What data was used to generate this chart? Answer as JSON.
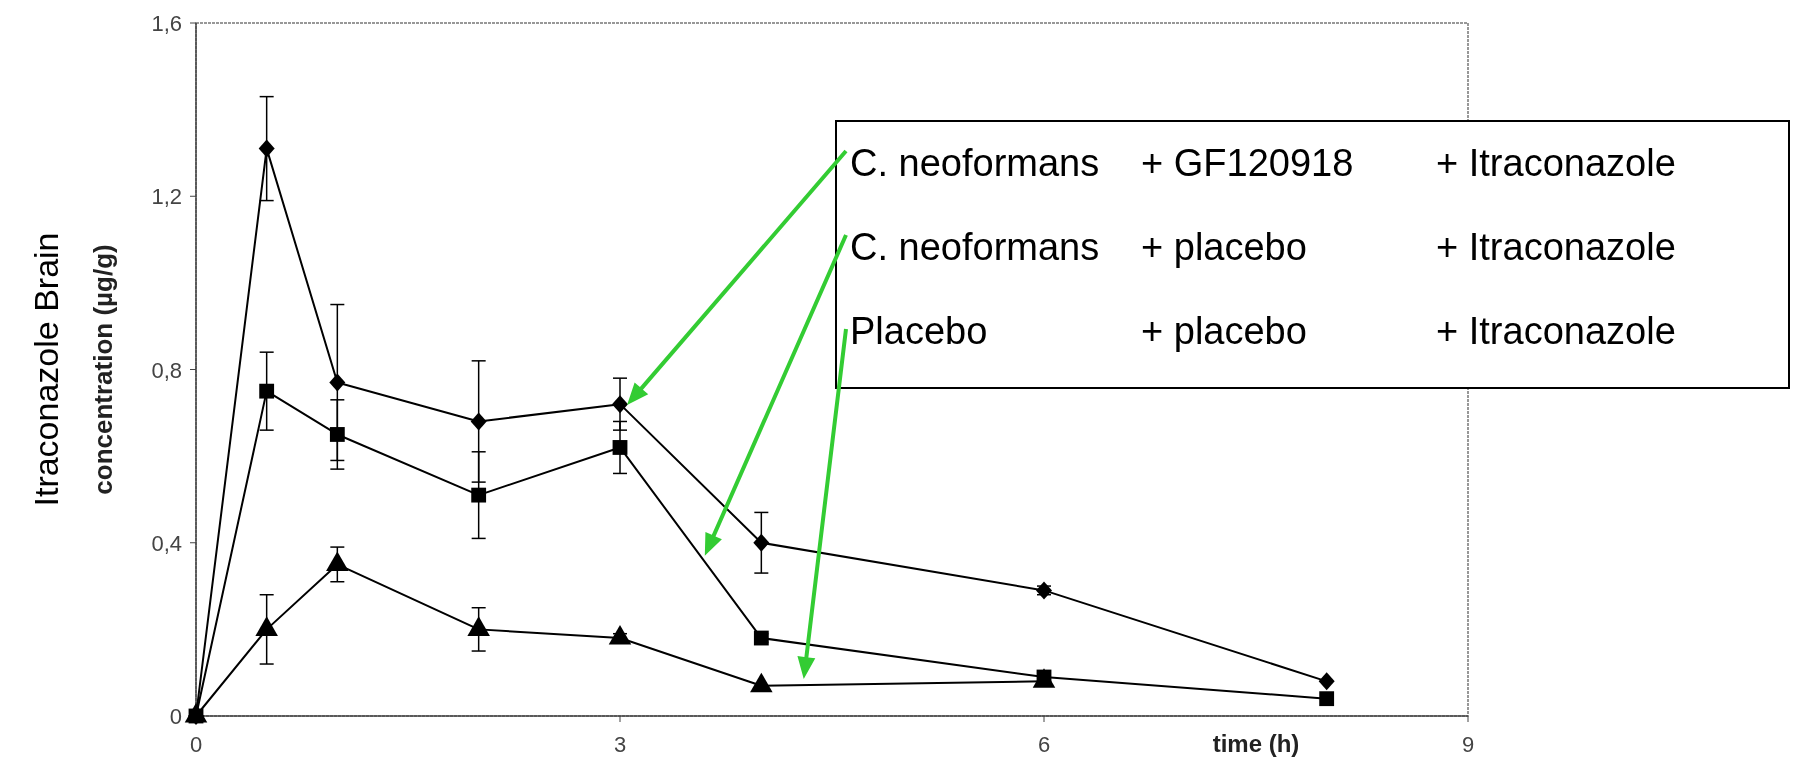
{
  "chart_data": {
    "type": "line",
    "xlabel": "time (h)",
    "ylabel": "Itraconazole Brain concentration (µg/g)",
    "x": [
      0,
      0.5,
      1,
      2,
      3,
      4,
      6,
      8
    ],
    "xlim": [
      0,
      9
    ],
    "xticks": [
      0,
      3,
      6,
      9
    ],
    "ylim": [
      0,
      1.6
    ],
    "yticks": [
      0,
      {
        "value": 0.4,
        "label": "0,4"
      },
      {
        "value": 0.8,
        "label": "0,8"
      },
      {
        "value": 1.2,
        "label": "1,2"
      },
      {
        "value": 1.6,
        "label": "1,6"
      }
    ],
    "grid": false,
    "line_style": "solid",
    "series": [
      {
        "name": "C. neoformans + GF120918 + Itraconazole",
        "color": "#000000",
        "marker": "diamond",
        "values": [
          0,
          1.31,
          0.77,
          0.68,
          0.72,
          0.4,
          0.29,
          0.08
        ],
        "errors": [
          null,
          0.12,
          0.18,
          0.14,
          0.06,
          0.07,
          0.01,
          null
        ]
      },
      {
        "name": "C. neoformans + placebo + Itraconazole",
        "color": "#000000",
        "marker": "square",
        "values": [
          0,
          0.75,
          0.65,
          0.51,
          0.62,
          0.18,
          0.09,
          0.04
        ],
        "errors": [
          null,
          0.09,
          0.08,
          0.1,
          0.06,
          0.01,
          null,
          null
        ]
      },
      {
        "name": "Placebo + placebo + Itraconazole",
        "color": "#000000",
        "marker": "triangle",
        "values": [
          0,
          0.2,
          0.35,
          0.2,
          0.18,
          0.07,
          0.08,
          null
        ],
        "errors": [
          null,
          0.08,
          0.04,
          0.05,
          0.01,
          null,
          null,
          null
        ]
      }
    ]
  }
}
